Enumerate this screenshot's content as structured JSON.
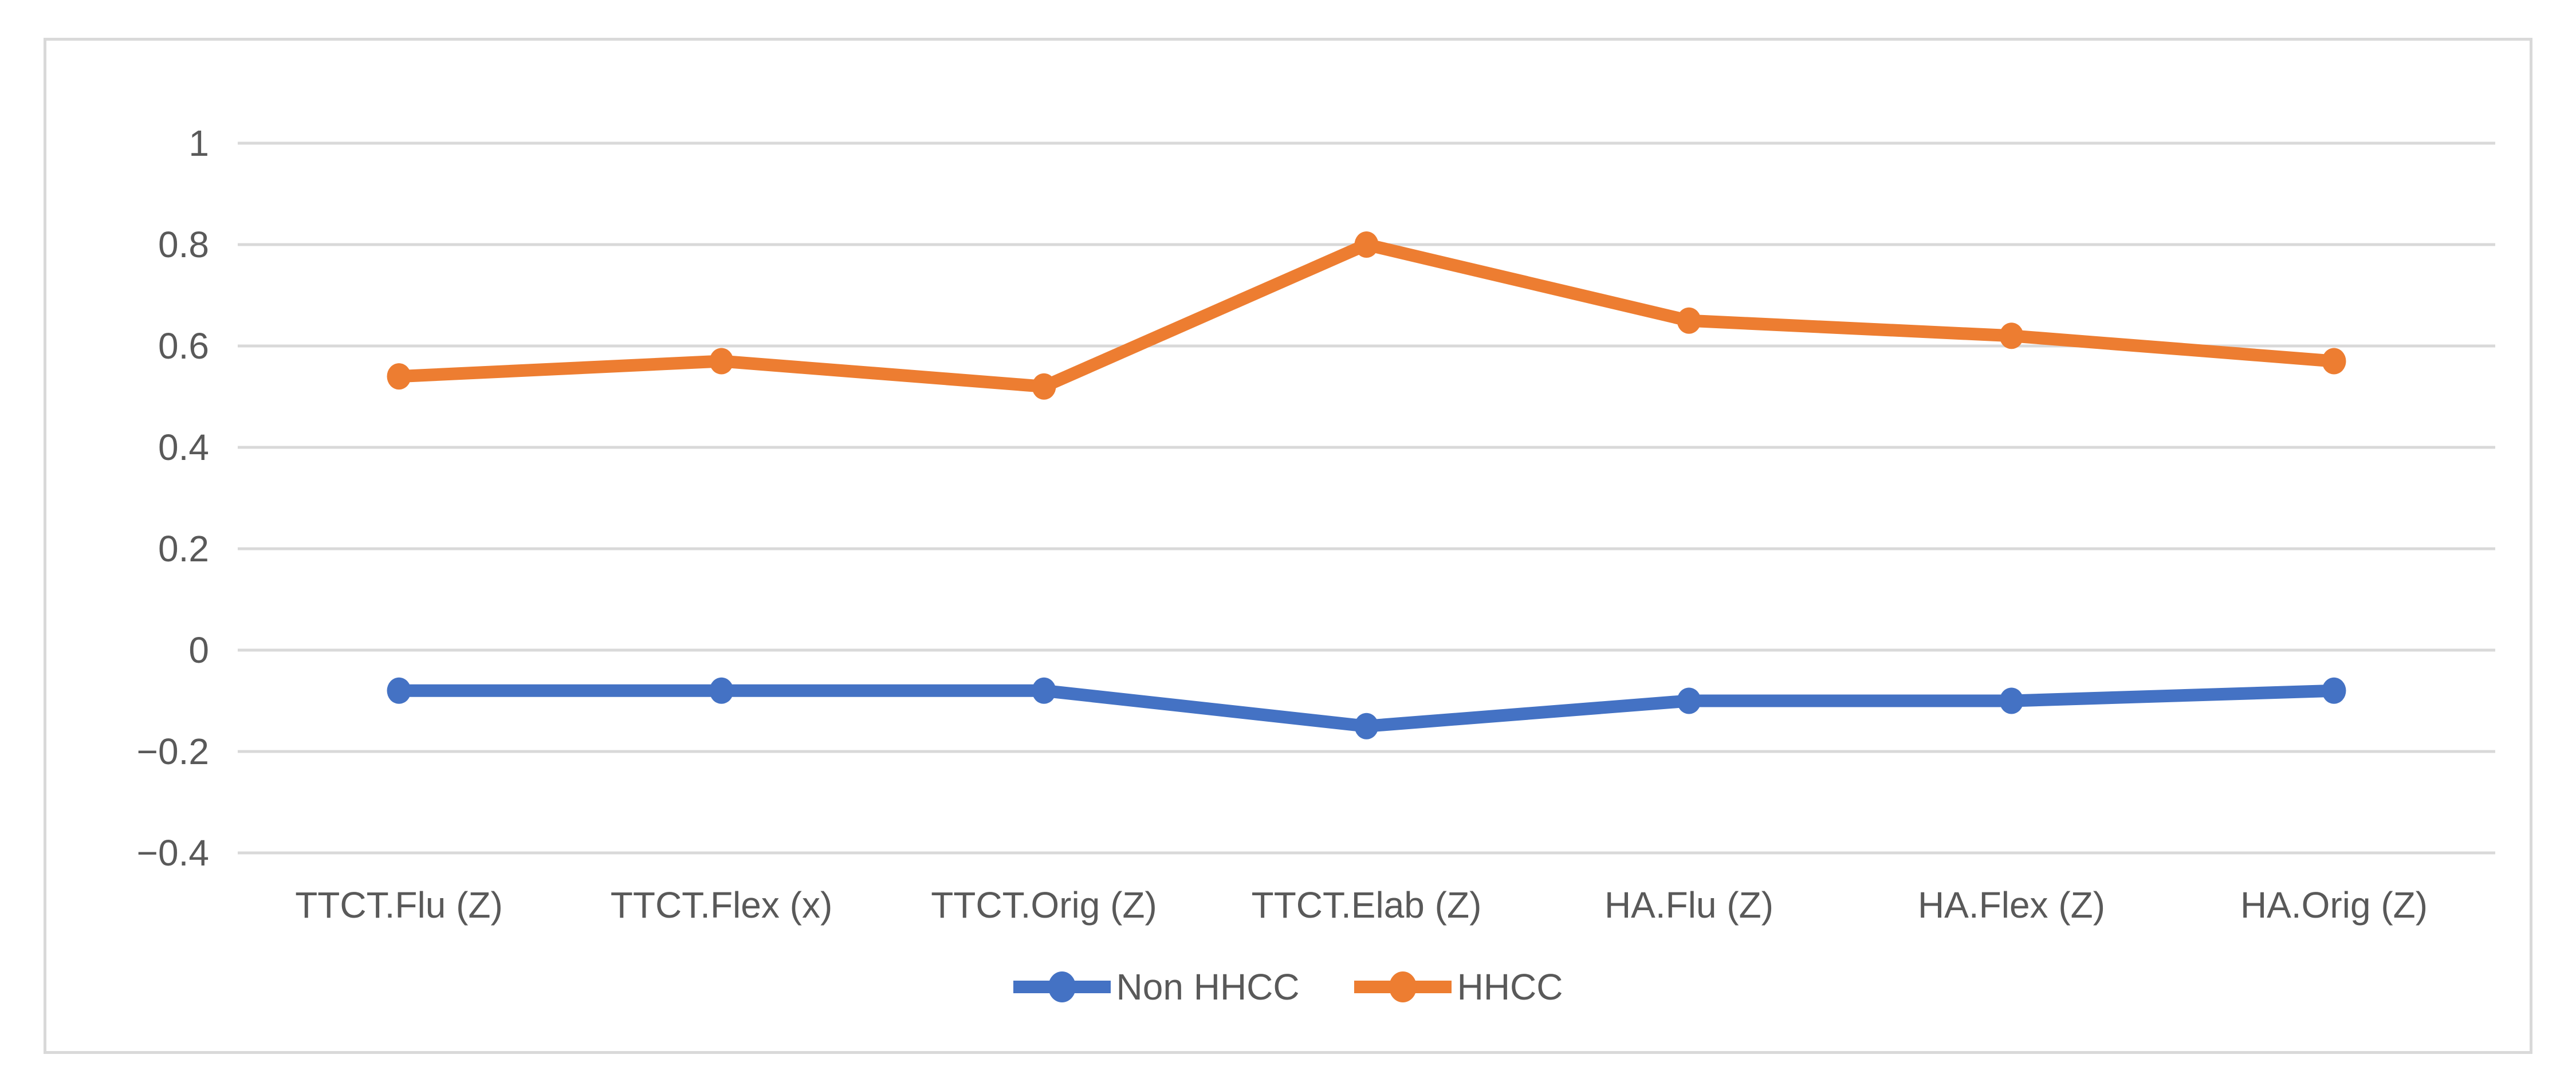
{
  "chart_data": {
    "type": "line",
    "title": "",
    "xlabel": "",
    "ylabel": "",
    "categories": [
      "TTCT.Flu (Z)",
      "TTCT.Flex (x)",
      "TTCT.Orig (Z)",
      "TTCT.Elab (Z)",
      "HA.Flu (Z)",
      "HA.Flex (Z)",
      "HA.Orig (Z)"
    ],
    "series": [
      {
        "name": "Non HHCC",
        "color": "#4472C4",
        "values": [
          -0.08,
          -0.08,
          -0.08,
          -0.15,
          -0.1,
          -0.1,
          -0.08
        ]
      },
      {
        "name": "HHCC",
        "color": "#ED7D31",
        "values": [
          0.54,
          0.57,
          0.52,
          0.8,
          0.65,
          0.62,
          0.57
        ]
      }
    ],
    "ylim": [
      -0.4,
      1.0
    ],
    "ytick_values": [
      1,
      0.8,
      0.6,
      0.4,
      0.2,
      0,
      -0.2,
      -0.4
    ],
    "ytick_labels": [
      "1",
      "0.8",
      "0.6",
      "0.4",
      "0.2",
      "0",
      "−0.2",
      "−0.4"
    ],
    "grid": true,
    "legend_position": "bottom-center",
    "marker": "circle",
    "colors": {
      "gridline": "#D9D9D9",
      "tick_text": "#595959",
      "chart_border": "#D9D9D9",
      "background": "#FFFFFF"
    }
  }
}
